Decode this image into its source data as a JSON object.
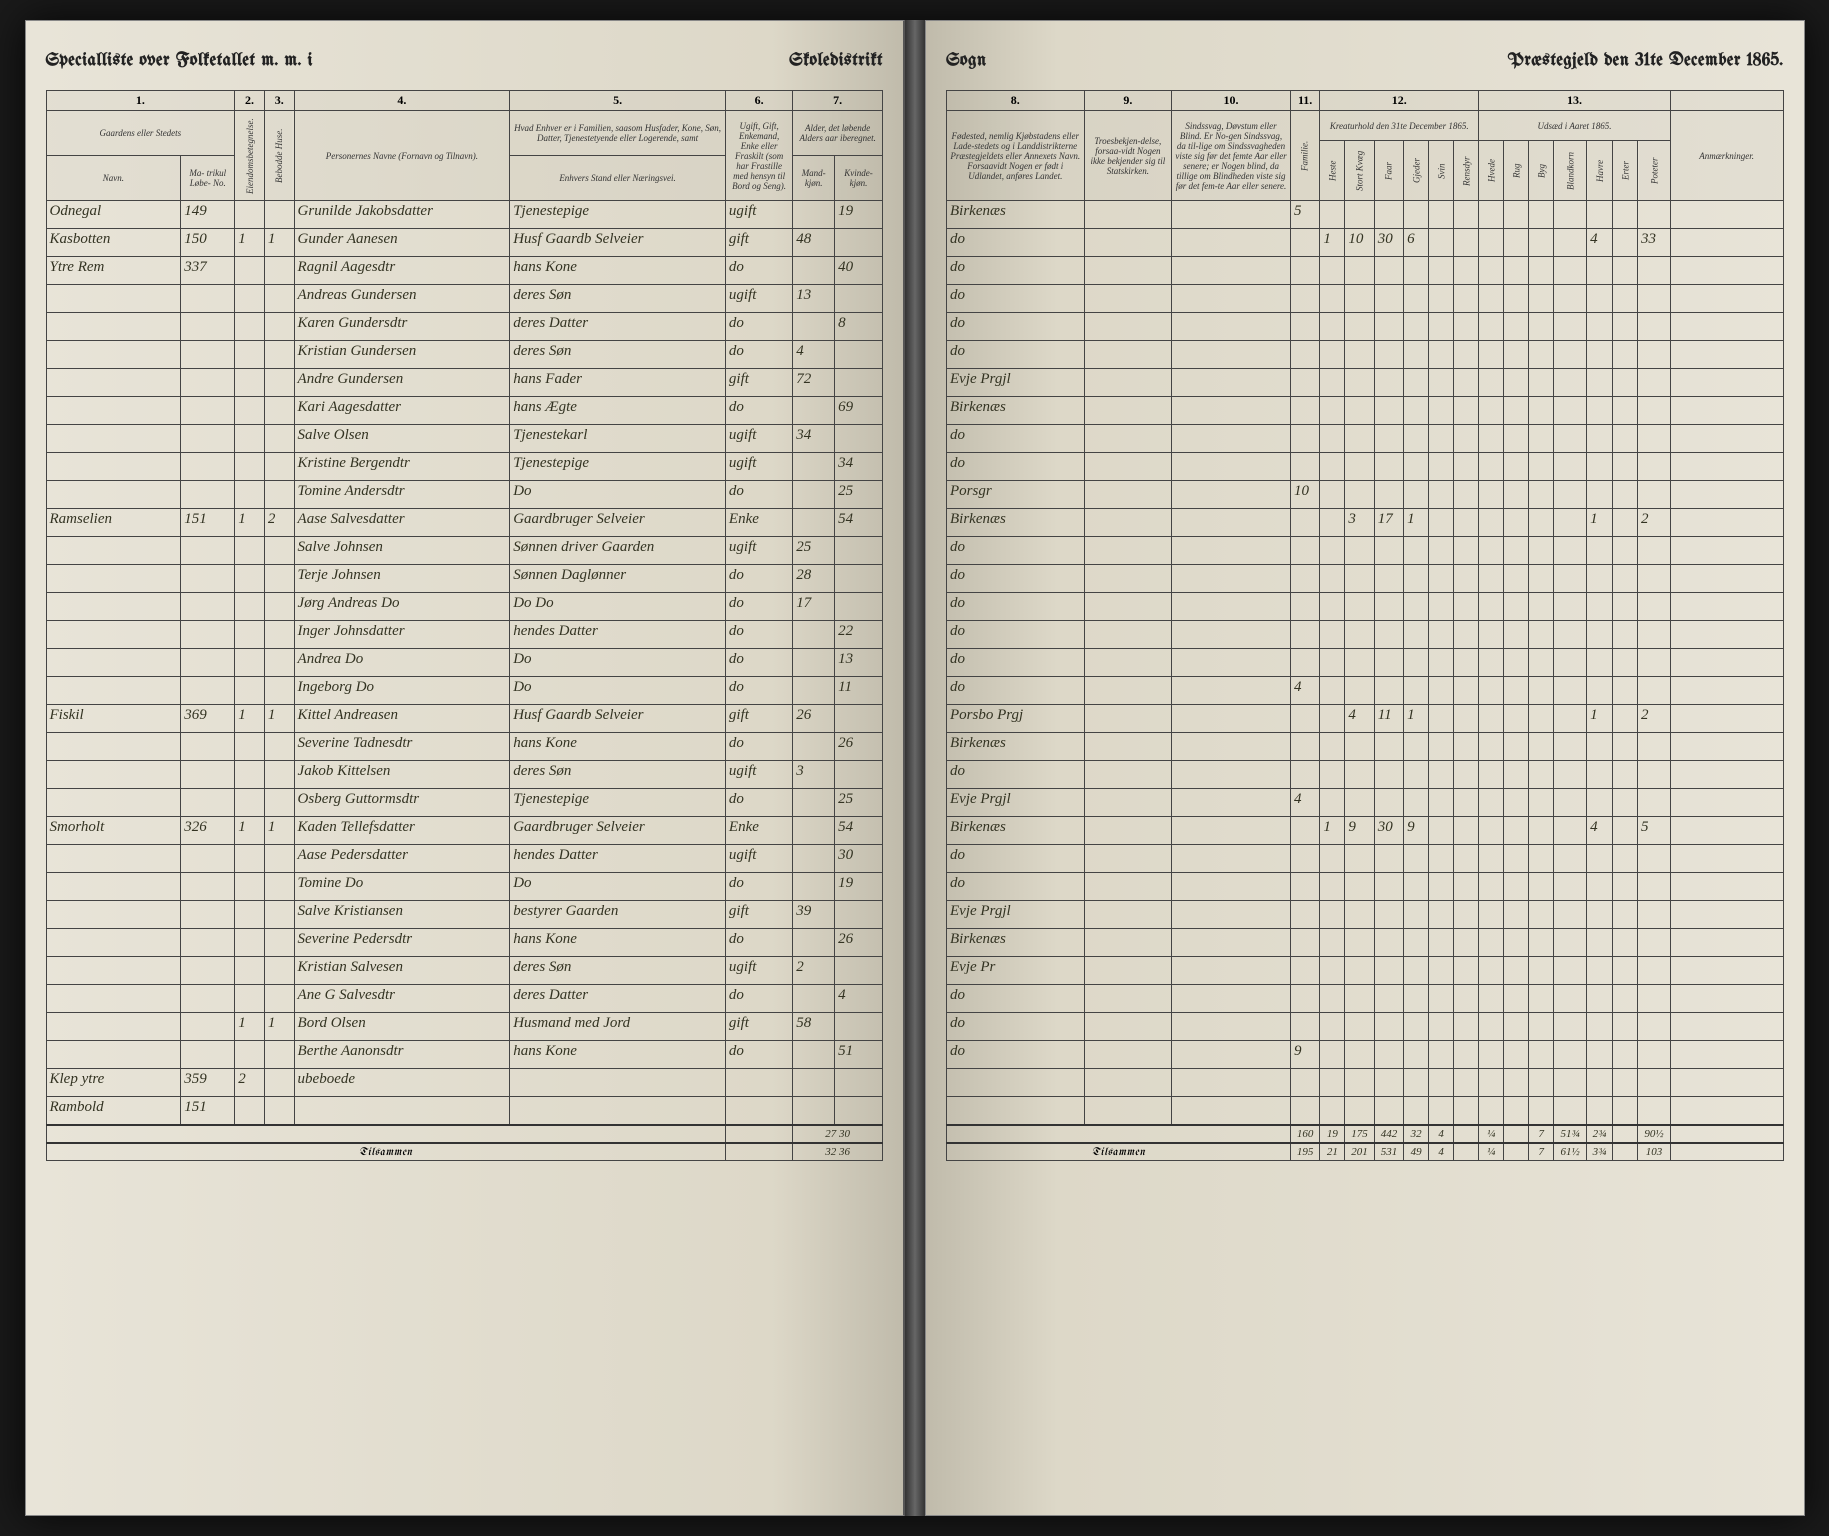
{
  "header": {
    "left_title_1": "Specialliste over Folketallet m. m. i",
    "left_title_2": "Skoledistrikt",
    "right_title_1": "Sogn",
    "right_title_2": "Præstegjeld den 31te December 1865."
  },
  "columns_left": {
    "c1": "1.",
    "c2": "2.",
    "c3": "3.",
    "c4": "4.",
    "c5": "5.",
    "c6": "6.",
    "c7": "7.",
    "c1_label": "Gaardens eller Stedets",
    "c1_navn": "Navn.",
    "c1_matr": "Ma-\ntrikul\nLøbe-\nNo.",
    "c2_label": "Eiendomsbetegnelse.",
    "c3_label": "Bebodde Huse.",
    "c4_label": "Personernes Navne (Fornavn og Tilnavn).",
    "c5_label": "Hvad Enhver er i Familien, saasom Husfader, Kone, Søn, Datter, Tjenestetyende eller Logerende, samt",
    "c5_sub": "Enhvers Stand eller Næringsvei.",
    "c6_label": "Ugift, Gift, Enkemand, Enke eller Fraskilt (som har Frastille med hensyn til Bord og Seng).",
    "c7_label": "Alder, det løbende Alders aar iberegnet.",
    "c7_m": "Mand-\nkjøn.",
    "c7_k": "Kvinde-\nkjøn."
  },
  "columns_right": {
    "c8": "8.",
    "c9": "9.",
    "c10": "10.",
    "c11": "11.",
    "c12": "12.",
    "c13": "13.",
    "c8_label": "Fødested, nemlig Kjøbstadens eller Lade-stedets og i Landdistrikterne Præstegjeldets eller Annexets Navn. Forsaavidt Nogen er født i Udlandet, anføres Landet.",
    "c9_label": "Troesbekjen-delse, forsaa-vidt Nogen ikke bekjender sig til Statskirken.",
    "c10_label": "Sindssvag, Døvstum eller Blind. Er No-gen Sindssvag, da til-lige om Sindssvagheden viste sig før det femte Aar eller senere; er Nogen blind, da tillige om Blindheden viste sig før det fem-te Aar eller senere.",
    "c11_label": "Familie.",
    "c12_label": "Kreaturhold den 31te December 1865.",
    "c13_label": "Udsæd i Aaret 1865.",
    "remarks": "Anmærkninger.",
    "c12_sub": [
      "Heste",
      "Stort Kvæg",
      "Faar",
      "Gjeder",
      "Svin",
      "Rensdyr"
    ],
    "c13_sub": [
      "Hvede",
      "Rug",
      "Byg",
      "Blandkorn",
      "Havre",
      "Erter",
      "Poteter"
    ]
  },
  "rows": [
    {
      "gaard": "Odnegal",
      "matr": "149",
      "eie": "",
      "hus": "",
      "navn": "Grunilde Jakobsdatter",
      "stilling": "Tjenestepige",
      "status": "ugift",
      "m": "",
      "k": "19",
      "fode": "Birkenæs",
      "c11": "5",
      "k12": [
        "",
        "",
        "",
        "",
        "",
        ""
      ],
      "k13": [
        "",
        "",
        "",
        "",
        "",
        "",
        ""
      ]
    },
    {
      "gaard": "Kasbotten",
      "matr": "150",
      "eie": "1",
      "hus": "1",
      "navn": "Gunder Aanesen",
      "stilling": "Husf Gaardb Selveier",
      "status": "gift",
      "m": "48",
      "k": "",
      "fode": "do",
      "c11": "",
      "k12": [
        "1",
        "10",
        "30",
        "6",
        "",
        ""
      ],
      "k13": [
        "",
        "",
        "",
        "",
        "4",
        "",
        "33"
      ]
    },
    {
      "gaard": "Ytre Rem",
      "matr": "337",
      "eie": "",
      "hus": "",
      "navn": "Ragnil Aagesdtr",
      "stilling": "hans Kone",
      "status": "do",
      "m": "",
      "k": "40",
      "fode": "do",
      "c11": "",
      "k12": [
        "",
        "",
        "",
        "",
        "",
        ""
      ],
      "k13": [
        "",
        "",
        "",
        "",
        "",
        "",
        ""
      ]
    },
    {
      "gaard": "",
      "matr": "",
      "eie": "",
      "hus": "",
      "navn": "Andreas Gundersen",
      "stilling": "deres Søn",
      "status": "ugift",
      "m": "13",
      "k": "",
      "fode": "do",
      "c11": "",
      "k12": [
        "",
        "",
        "",
        "",
        "",
        ""
      ],
      "k13": [
        "",
        "",
        "",
        "",
        "",
        "",
        ""
      ]
    },
    {
      "gaard": "",
      "matr": "",
      "eie": "",
      "hus": "",
      "navn": "Karen Gundersdtr",
      "stilling": "deres Datter",
      "status": "do",
      "m": "",
      "k": "8",
      "fode": "do",
      "c11": "",
      "k12": [
        "",
        "",
        "",
        "",
        "",
        ""
      ],
      "k13": [
        "",
        "",
        "",
        "",
        "",
        "",
        ""
      ]
    },
    {
      "gaard": "",
      "matr": "",
      "eie": "",
      "hus": "",
      "navn": "Kristian Gundersen",
      "stilling": "deres Søn",
      "status": "do",
      "m": "4",
      "k": "",
      "fode": "do",
      "c11": "",
      "k12": [
        "",
        "",
        "",
        "",
        "",
        ""
      ],
      "k13": [
        "",
        "",
        "",
        "",
        "",
        "",
        ""
      ]
    },
    {
      "gaard": "",
      "matr": "",
      "eie": "",
      "hus": "",
      "navn": "Andre Gundersen",
      "stilling": "hans Fader",
      "status": "gift",
      "m": "72",
      "k": "",
      "fode": "Evje Prgjl",
      "c11": "",
      "k12": [
        "",
        "",
        "",
        "",
        "",
        ""
      ],
      "k13": [
        "",
        "",
        "",
        "",
        "",
        "",
        ""
      ]
    },
    {
      "gaard": "",
      "matr": "",
      "eie": "",
      "hus": "",
      "navn": "Kari Aagesdatter",
      "stilling": "hans Ægte",
      "status": "do",
      "m": "",
      "k": "69",
      "fode": "Birkenæs",
      "c11": "",
      "k12": [
        "",
        "",
        "",
        "",
        "",
        ""
      ],
      "k13": [
        "",
        "",
        "",
        "",
        "",
        "",
        ""
      ]
    },
    {
      "gaard": "",
      "matr": "",
      "eie": "",
      "hus": "",
      "navn": "Salve Olsen",
      "stilling": "Tjenestekarl",
      "status": "ugift",
      "m": "34",
      "k": "",
      "fode": "do",
      "c11": "",
      "k12": [
        "",
        "",
        "",
        "",
        "",
        ""
      ],
      "k13": [
        "",
        "",
        "",
        "",
        "",
        "",
        ""
      ]
    },
    {
      "gaard": "",
      "matr": "",
      "eie": "",
      "hus": "",
      "navn": "Kristine Bergendtr",
      "stilling": "Tjenestepige",
      "status": "ugift",
      "m": "",
      "k": "34",
      "fode": "do",
      "c11": "",
      "k12": [
        "",
        "",
        "",
        "",
        "",
        ""
      ],
      "k13": [
        "",
        "",
        "",
        "",
        "",
        "",
        ""
      ]
    },
    {
      "gaard": "",
      "matr": "",
      "eie": "",
      "hus": "",
      "navn": "Tomine Andersdtr",
      "stilling": "Do",
      "status": "do",
      "m": "",
      "k": "25",
      "fode": "Porsgr",
      "c11": "10",
      "k12": [
        "",
        "",
        "",
        "",
        "",
        ""
      ],
      "k13": [
        "",
        "",
        "",
        "",
        "",
        "",
        ""
      ]
    },
    {
      "gaard": "Ramselien",
      "matr": "151",
      "eie": "1",
      "hus": "2",
      "navn": "Aase Salvesdatter",
      "stilling": "Gaardbruger Selveier",
      "status": "Enke",
      "m": "",
      "k": "54",
      "fode": "Birkenæs",
      "c11": "",
      "k12": [
        "",
        "3",
        "17",
        "1",
        "",
        ""
      ],
      "k13": [
        "",
        "",
        "",
        "",
        "1",
        "",
        "2"
      ]
    },
    {
      "gaard": "",
      "matr": "",
      "eie": "",
      "hus": "",
      "navn": "Salve Johnsen",
      "stilling": "Sønnen driver Gaarden",
      "status": "ugift",
      "m": "25",
      "k": "",
      "fode": "do",
      "c11": "",
      "k12": [
        "",
        "",
        "",
        "",
        "",
        ""
      ],
      "k13": [
        "",
        "",
        "",
        "",
        "",
        "",
        ""
      ]
    },
    {
      "gaard": "",
      "matr": "",
      "eie": "",
      "hus": "",
      "navn": "Terje Johnsen",
      "stilling": "Sønnen Daglønner",
      "status": "do",
      "m": "28",
      "k": "",
      "fode": "do",
      "c11": "",
      "k12": [
        "",
        "",
        "",
        "",
        "",
        ""
      ],
      "k13": [
        "",
        "",
        "",
        "",
        "",
        "",
        ""
      ]
    },
    {
      "gaard": "",
      "matr": "",
      "eie": "",
      "hus": "",
      "navn": "Jørg Andreas Do",
      "stilling": "Do   Do",
      "status": "do",
      "m": "17",
      "k": "",
      "fode": "do",
      "c11": "",
      "k12": [
        "",
        "",
        "",
        "",
        "",
        ""
      ],
      "k13": [
        "",
        "",
        "",
        "",
        "",
        "",
        ""
      ]
    },
    {
      "gaard": "",
      "matr": "",
      "eie": "",
      "hus": "",
      "navn": "Inger Johnsdatter",
      "stilling": "hendes Datter",
      "status": "do",
      "m": "",
      "k": "22",
      "fode": "do",
      "c11": "",
      "k12": [
        "",
        "",
        "",
        "",
        "",
        ""
      ],
      "k13": [
        "",
        "",
        "",
        "",
        "",
        "",
        ""
      ]
    },
    {
      "gaard": "",
      "matr": "",
      "eie": "",
      "hus": "",
      "navn": "Andrea Do",
      "stilling": "Do",
      "status": "do",
      "m": "",
      "k": "13",
      "fode": "do",
      "c11": "",
      "k12": [
        "",
        "",
        "",
        "",
        "",
        ""
      ],
      "k13": [
        "",
        "",
        "",
        "",
        "",
        "",
        ""
      ]
    },
    {
      "gaard": "",
      "matr": "",
      "eie": "",
      "hus": "",
      "navn": "Ingeborg Do",
      "stilling": "Do",
      "status": "do",
      "m": "",
      "k": "11",
      "fode": "do",
      "c11": "4",
      "k12": [
        "",
        "",
        "",
        "",
        "",
        ""
      ],
      "k13": [
        "",
        "",
        "",
        "",
        "",
        "",
        ""
      ]
    },
    {
      "gaard": "Fiskil",
      "matr": "369",
      "eie": "1",
      "hus": "1",
      "navn": "Kittel Andreasen",
      "stilling": "Husf Gaardb Selveier",
      "status": "gift",
      "m": "26",
      "k": "",
      "fode": "Porsbo Prgj",
      "c11": "",
      "k12": [
        "",
        "4",
        "11",
        "1",
        "",
        ""
      ],
      "k13": [
        "",
        "",
        "",
        "",
        "1",
        "",
        "2"
      ]
    },
    {
      "gaard": "",
      "matr": "",
      "eie": "",
      "hus": "",
      "navn": "Severine Tadnesdtr",
      "stilling": "hans Kone",
      "status": "do",
      "m": "",
      "k": "26",
      "fode": "Birkenæs",
      "c11": "",
      "k12": [
        "",
        "",
        "",
        "",
        "",
        ""
      ],
      "k13": [
        "",
        "",
        "",
        "",
        "",
        "",
        ""
      ]
    },
    {
      "gaard": "",
      "matr": "",
      "eie": "",
      "hus": "",
      "navn": "Jakob Kittelsen",
      "stilling": "deres Søn",
      "status": "ugift",
      "m": "3",
      "k": "",
      "fode": "do",
      "c11": "",
      "k12": [
        "",
        "",
        "",
        "",
        "",
        ""
      ],
      "k13": [
        "",
        "",
        "",
        "",
        "",
        "",
        ""
      ]
    },
    {
      "gaard": "",
      "matr": "",
      "eie": "",
      "hus": "",
      "navn": "Osberg Guttormsdtr",
      "stilling": "Tjenestepige",
      "status": "do",
      "m": "",
      "k": "25",
      "fode": "Evje Prgjl",
      "c11": "4",
      "k12": [
        "",
        "",
        "",
        "",
        "",
        ""
      ],
      "k13": [
        "",
        "",
        "",
        "",
        "",
        "",
        ""
      ]
    },
    {
      "gaard": "Smorholt",
      "matr": "326",
      "eie": "1",
      "hus": "1",
      "navn": "Kaden Tellefsdatter",
      "stilling": "Gaardbruger Selveier",
      "status": "Enke",
      "m": "",
      "k": "54",
      "fode": "Birkenæs",
      "c11": "",
      "k12": [
        "1",
        "9",
        "30",
        "9",
        "",
        ""
      ],
      "k13": [
        "",
        "",
        "",
        "",
        "4",
        "",
        "5"
      ]
    },
    {
      "gaard": "",
      "matr": "",
      "eie": "",
      "hus": "",
      "navn": "Aase Pedersdatter",
      "stilling": "hendes Datter",
      "status": "ugift",
      "m": "",
      "k": "30",
      "fode": "do",
      "c11": "",
      "k12": [
        "",
        "",
        "",
        "",
        "",
        ""
      ],
      "k13": [
        "",
        "",
        "",
        "",
        "",
        "",
        ""
      ]
    },
    {
      "gaard": "",
      "matr": "",
      "eie": "",
      "hus": "",
      "navn": "Tomine Do",
      "stilling": "Do",
      "status": "do",
      "m": "",
      "k": "19",
      "fode": "do",
      "c11": "",
      "k12": [
        "",
        "",
        "",
        "",
        "",
        ""
      ],
      "k13": [
        "",
        "",
        "",
        "",
        "",
        "",
        ""
      ]
    },
    {
      "gaard": "",
      "matr": "",
      "eie": "",
      "hus": "",
      "navn": "Salve Kristiansen",
      "stilling": "bestyrer Gaarden",
      "status": "gift",
      "m": "39",
      "k": "",
      "fode": "Evje Prgjl",
      "c11": "",
      "k12": [
        "",
        "",
        "",
        "",
        "",
        ""
      ],
      "k13": [
        "",
        "",
        "",
        "",
        "",
        "",
        ""
      ]
    },
    {
      "gaard": "",
      "matr": "",
      "eie": "",
      "hus": "",
      "navn": "Severine Pedersdtr",
      "stilling": "hans Kone",
      "status": "do",
      "m": "",
      "k": "26",
      "fode": "Birkenæs",
      "c11": "",
      "k12": [
        "",
        "",
        "",
        "",
        "",
        ""
      ],
      "k13": [
        "",
        "",
        "",
        "",
        "",
        "",
        ""
      ]
    },
    {
      "gaard": "",
      "matr": "",
      "eie": "",
      "hus": "",
      "navn": "Kristian Salvesen",
      "stilling": "deres Søn",
      "status": "ugift",
      "m": "2",
      "k": "",
      "fode": "Evje Pr",
      "c11": "",
      "k12": [
        "",
        "",
        "",
        "",
        "",
        ""
      ],
      "k13": [
        "",
        "",
        "",
        "",
        "",
        "",
        ""
      ]
    },
    {
      "gaard": "",
      "matr": "",
      "eie": "",
      "hus": "",
      "navn": "Ane G Salvesdtr",
      "stilling": "deres Datter",
      "status": "do",
      "m": "",
      "k": "4",
      "fode": "do",
      "c11": "",
      "k12": [
        "",
        "",
        "",
        "",
        "",
        ""
      ],
      "k13": [
        "",
        "",
        "",
        "",
        "",
        "",
        ""
      ]
    },
    {
      "gaard": "",
      "matr": "",
      "eie": "1",
      "hus": "1",
      "navn": "Bord Olsen",
      "stilling": "Husmand med Jord",
      "status": "gift",
      "m": "58",
      "k": "",
      "fode": "do",
      "c11": "",
      "k12": [
        "",
        "",
        "",
        "",
        "",
        ""
      ],
      "k13": [
        "",
        "",
        "",
        "",
        "",
        "",
        ""
      ]
    },
    {
      "gaard": "",
      "matr": "",
      "eie": "",
      "hus": "",
      "navn": "Berthe Aanonsdtr",
      "stilling": "hans Kone",
      "status": "do",
      "m": "",
      "k": "51",
      "fode": "do",
      "c11": "9",
      "k12": [
        "",
        "",
        "",
        "",
        "",
        ""
      ],
      "k13": [
        "",
        "",
        "",
        "",
        "",
        "",
        ""
      ]
    },
    {
      "gaard": "Klep ytre",
      "matr": "359",
      "eie": "2",
      "hus": "",
      "navn": "ubeboede",
      "stilling": "",
      "status": "",
      "m": "",
      "k": "",
      "fode": "",
      "c11": "",
      "k12": [
        "",
        "",
        "",
        "",
        "",
        ""
      ],
      "k13": [
        "",
        "",
        "",
        "",
        "",
        "",
        ""
      ]
    },
    {
      "gaard": "Rambold",
      "matr": "151",
      "eie": "",
      "hus": "",
      "navn": "",
      "stilling": "",
      "status": "",
      "m": "",
      "k": "",
      "fode": "",
      "c11": "",
      "k12": [
        "",
        "",
        "",
        "",
        "",
        ""
      ],
      "k13": [
        "",
        "",
        "",
        "",
        "",
        "",
        ""
      ]
    }
  ],
  "footer": {
    "left_sum1": "27 30",
    "left_sum2": "32 36",
    "tilsammen": "Tilsammen",
    "right_row1": [
      "160",
      "19",
      "175",
      "442",
      "32",
      "4",
      "",
      "¼",
      "",
      "7",
      "51¾",
      "2¾",
      "",
      "90½"
    ],
    "right_row2": [
      "195",
      "21",
      "201",
      "531",
      "49",
      "4",
      "",
      "¼",
      "",
      "7",
      "61½",
      "3¾",
      "",
      "103"
    ]
  }
}
